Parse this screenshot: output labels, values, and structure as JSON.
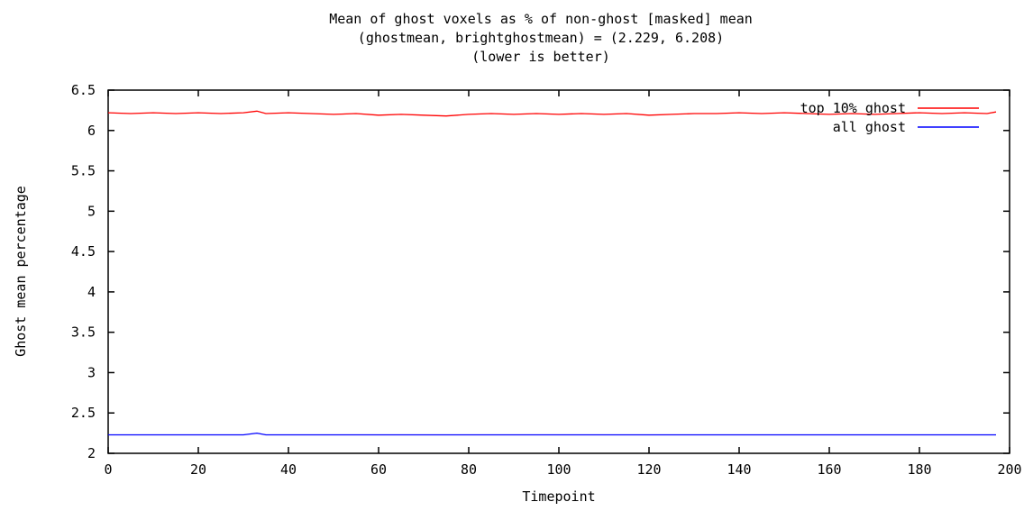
{
  "chart_data": {
    "type": "line",
    "title": [
      "Mean of ghost voxels as % of non-ghost [masked] mean",
      "(ghostmean, brightghostmean) = (2.229, 6.208)",
      "(lower is better)"
    ],
    "xlabel": "Timepoint",
    "ylabel": "Ghost mean percentage",
    "xlim": [
      0,
      200
    ],
    "ylim": [
      2,
      6.5
    ],
    "xticks": [
      "0",
      "20",
      "40",
      "60",
      "80",
      "100",
      "120",
      "140",
      "160",
      "180",
      "200"
    ],
    "yticks": [
      "2",
      "2.5",
      "3",
      "3.5",
      "4",
      "4.5",
      "5",
      "5.5",
      "6",
      "6.5"
    ],
    "grid": false,
    "legend_position": "top-right",
    "x": [
      0,
      5,
      10,
      15,
      20,
      25,
      30,
      33,
      35,
      40,
      45,
      50,
      55,
      60,
      65,
      70,
      75,
      80,
      85,
      90,
      95,
      100,
      105,
      110,
      115,
      120,
      125,
      130,
      135,
      140,
      145,
      150,
      155,
      160,
      165,
      170,
      175,
      180,
      185,
      190,
      195,
      197
    ],
    "series": [
      {
        "name": "top 10% ghost",
        "color": "#ff0000",
        "values": [
          6.22,
          6.21,
          6.22,
          6.21,
          6.22,
          6.21,
          6.22,
          6.24,
          6.21,
          6.22,
          6.21,
          6.2,
          6.21,
          6.19,
          6.2,
          6.19,
          6.18,
          6.2,
          6.21,
          6.2,
          6.21,
          6.2,
          6.21,
          6.2,
          6.21,
          6.19,
          6.2,
          6.21,
          6.21,
          6.22,
          6.21,
          6.22,
          6.21,
          6.2,
          6.21,
          6.2,
          6.21,
          6.22,
          6.21,
          6.22,
          6.21,
          6.23
        ]
      },
      {
        "name": "all ghost",
        "color": "#0000ff",
        "values": [
          2.229,
          2.229,
          2.229,
          2.229,
          2.229,
          2.229,
          2.229,
          2.25,
          2.229,
          2.229,
          2.229,
          2.229,
          2.229,
          2.229,
          2.229,
          2.229,
          2.229,
          2.229,
          2.229,
          2.229,
          2.229,
          2.229,
          2.229,
          2.229,
          2.229,
          2.229,
          2.229,
          2.229,
          2.229,
          2.229,
          2.229,
          2.229,
          2.229,
          2.229,
          2.229,
          2.229,
          2.229,
          2.229,
          2.229,
          2.229,
          2.229,
          2.229
        ]
      }
    ]
  }
}
